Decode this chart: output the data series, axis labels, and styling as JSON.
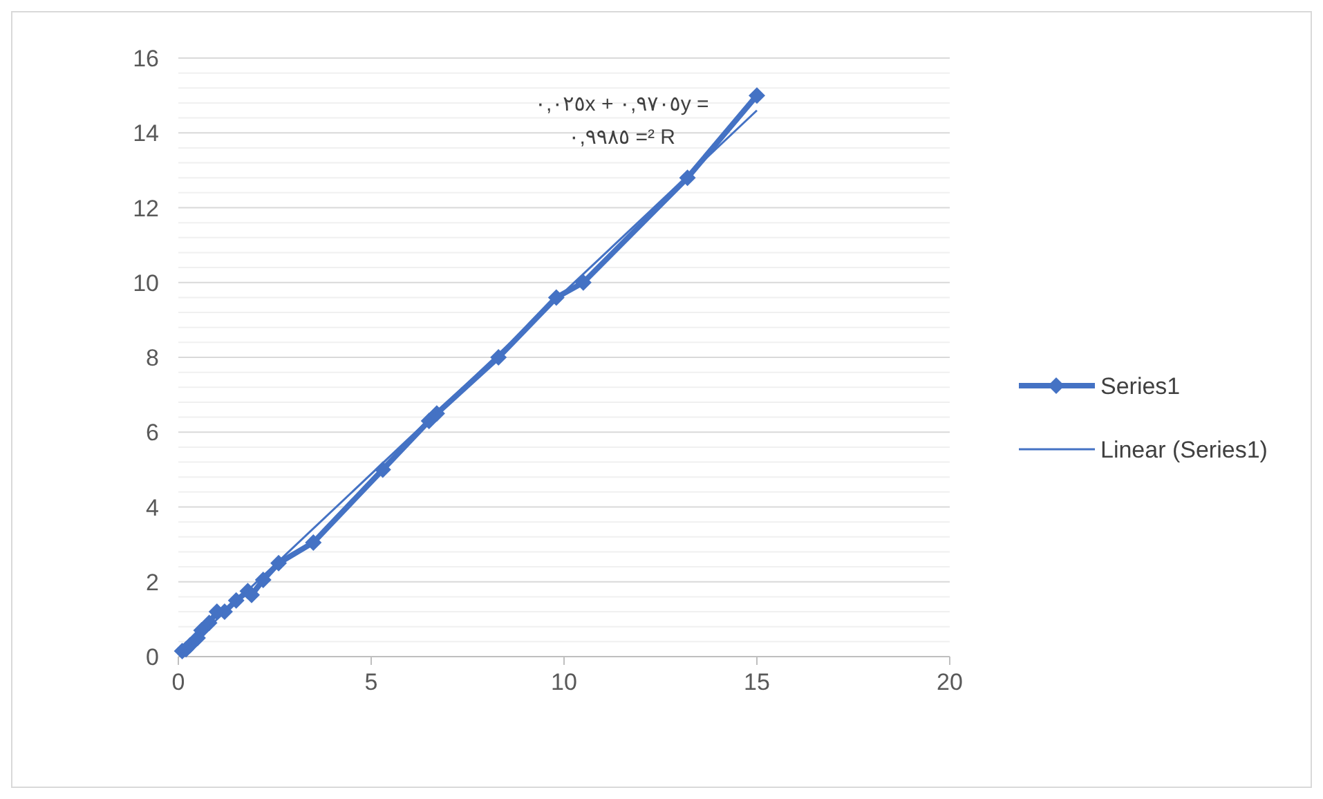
{
  "chart_data": {
    "type": "line",
    "xlim": [
      0,
      20
    ],
    "xticks": [
      0,
      5,
      10,
      15,
      20
    ],
    "ylim": [
      0,
      16
    ],
    "yticks": [
      0,
      2,
      4,
      6,
      8,
      10,
      12,
      14,
      16
    ],
    "grid": "y",
    "legend": "right",
    "annotations": [
      "٠,٠٢٥x + ٠,٩٧٠٥y =",
      "٠,٩٩٨٥ =² R"
    ],
    "series": [
      {
        "name": "Series1",
        "color": "#4472c4",
        "marker": "diamond",
        "line_style": "solid",
        "x": [
          0.1,
          0.2,
          0.3,
          0.5,
          0.6,
          0.8,
          1.0,
          1.2,
          1.5,
          1.8,
          1.9,
          2.2,
          2.6,
          3.5,
          5.3,
          6.5,
          6.7,
          8.3,
          9.8,
          10.5,
          13.2,
          15
        ],
        "values": [
          0.15,
          0.2,
          0.3,
          0.5,
          0.7,
          0.9,
          1.2,
          1.2,
          1.5,
          1.75,
          1.65,
          2.05,
          2.5,
          3.05,
          5,
          6.3,
          6.5,
          8,
          9.6,
          10,
          12.8,
          15
        ]
      },
      {
        "name": "Linear (Series1)",
        "type": "line",
        "color": "#4472c4",
        "marker": "none",
        "line_style": "solid",
        "x": [
          0.1,
          15
        ],
        "values": [
          0.12,
          14.6
        ]
      }
    ]
  }
}
